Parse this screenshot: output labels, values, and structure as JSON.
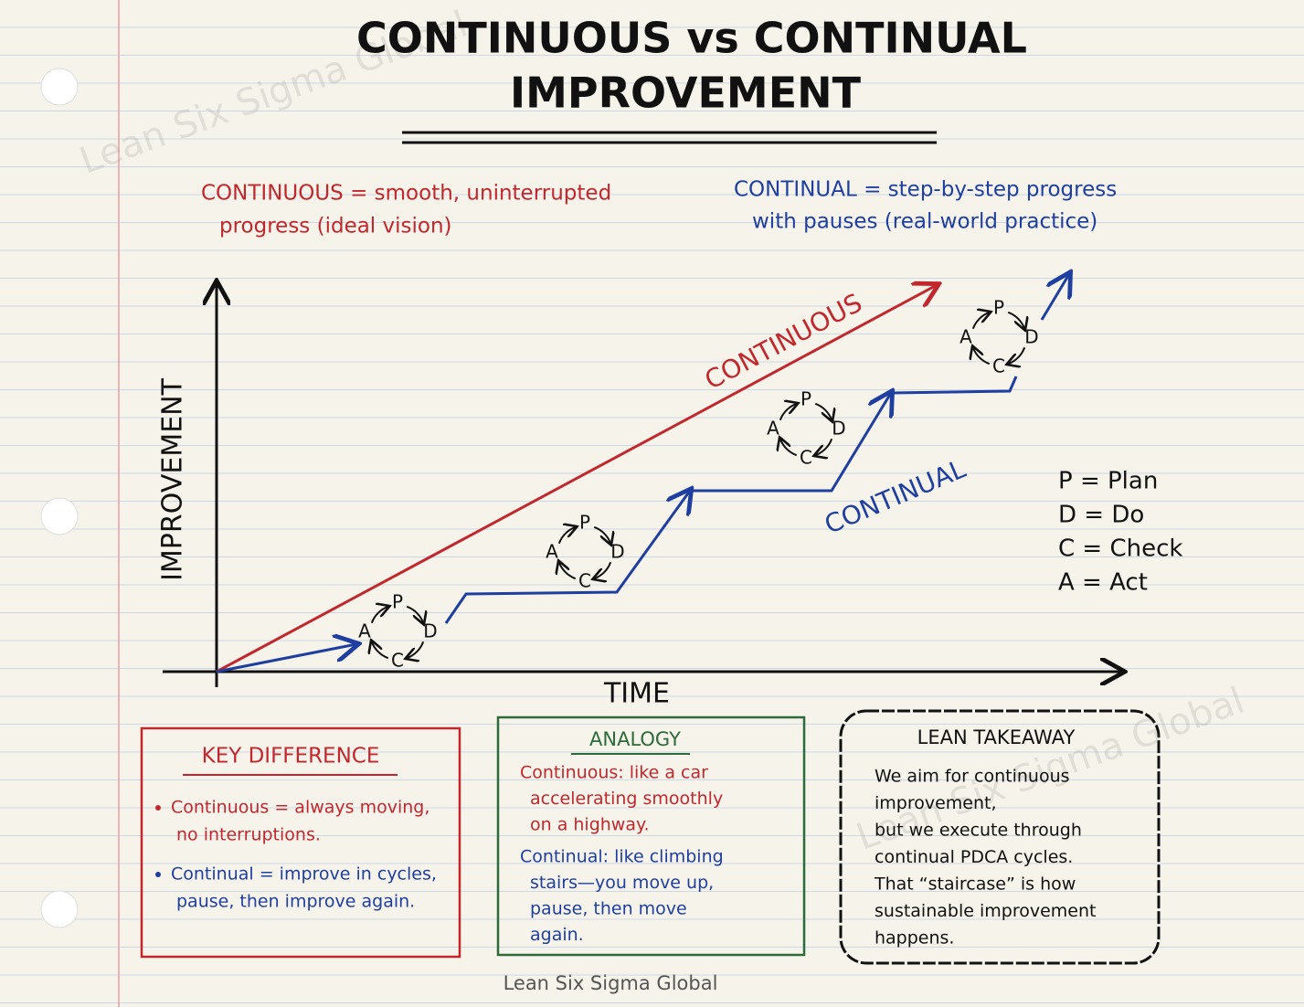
{
  "title": {
    "line1": "CONTINUOUS vs CONTINUAL",
    "line2": "IMPROVEMENT"
  },
  "watermarks": [
    "Lean Six Sigma Global",
    "Lean Six Sigma Global"
  ],
  "definitions": {
    "continuous": [
      "CONTINUOUS = smooth, uninterrupted",
      "progress (ideal vision)"
    ],
    "continual": [
      "CONTINUAL = step-by-step progress",
      "with pauses (real-world practice)"
    ]
  },
  "chart": {
    "y_axis_label": "IMPROVEMENT",
    "x_axis_label": "TIME",
    "continuous_label": "CONTINUOUS",
    "continual_label": "CONTINUAL",
    "cycle_letters": {
      "p": "P",
      "d": "D",
      "c": "C",
      "a": "A"
    }
  },
  "legend": [
    "P = Plan",
    "D = Do",
    "C = Check",
    "A = Act"
  ],
  "key_difference": {
    "title": "KEY DIFFERENCE",
    "bullets": [
      [
        "Continuous = always moving,",
        "no interruptions."
      ],
      [
        "Continual = improve in cycles,",
        "pause, then improve again."
      ]
    ]
  },
  "analogy": {
    "title": "ANALOGY",
    "continuous": [
      "Continuous: like a car",
      "accelerating smoothly",
      "on a highway."
    ],
    "continual": [
      "Continual: like climbing",
      "stairs—you move up,",
      "pause, then move",
      "again."
    ]
  },
  "takeaway": {
    "title": "LEAN TAKEAWAY",
    "lines": [
      "We aim for continuous",
      "improvement,",
      "but we execute through",
      "continual PDCA cycles.",
      "That “staircase” is how",
      "sustainable improvement",
      "happens."
    ]
  },
  "footer": "Lean Six Sigma Global"
}
